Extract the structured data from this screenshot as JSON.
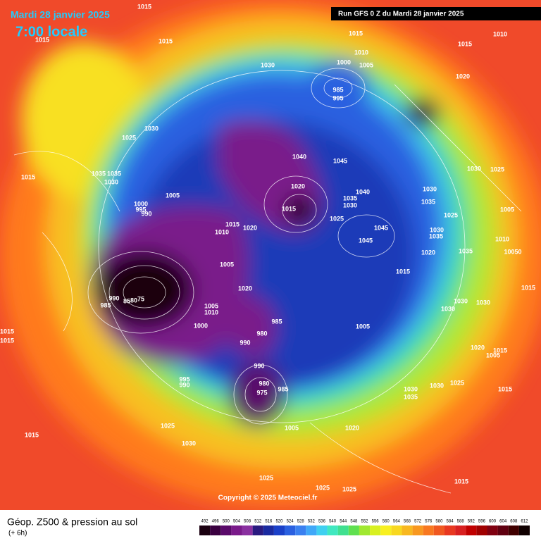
{
  "header": {
    "date": "Mardi 28 janvier 2025",
    "time": "7:00 locale",
    "run": "Run GFS 0 Z du Mardi 28 janvier 2025"
  },
  "copyright": "Copyright © 2025 Meteociel.fr",
  "footer": {
    "title": "Géop. Z500 & pression au sol",
    "subtitle": "(+ 6h)"
  },
  "legend": {
    "ticks": [
      492,
      496,
      500,
      504,
      508,
      512,
      516,
      520,
      524,
      528,
      532,
      536,
      540,
      544,
      548,
      552,
      556,
      560,
      564,
      568,
      572,
      576,
      580,
      584,
      588,
      592,
      596,
      600,
      604,
      608,
      612
    ],
    "colors": [
      "#1a0010",
      "#3a0040",
      "#5a0a6a",
      "#7a1a8a",
      "#8a30a0",
      "#2a1a80",
      "#1a2aa0",
      "#1a40c8",
      "#2a60e0",
      "#3a80f0",
      "#40a8f8",
      "#40d0f0",
      "#40e8c0",
      "#40e090",
      "#60e050",
      "#a0e830",
      "#d8f020",
      "#f8f020",
      "#f8d820",
      "#f8b820",
      "#f89820",
      "#f87820",
      "#f05820",
      "#e83820",
      "#d82020",
      "#c00000",
      "#a00000",
      "#800010",
      "#600010",
      "#400000",
      "#100000"
    ]
  },
  "map": {
    "pressure_labels": [
      "1015",
      "1015",
      "1015",
      "1015",
      "1010",
      "1015",
      "1010",
      "1000",
      "1005",
      "1030",
      "1020",
      "985",
      "995",
      "1030",
      "1025",
      "1040",
      "1045",
      "1015",
      "1035",
      "1035",
      "1030",
      "1040",
      "1030",
      "1030",
      "1025",
      "1005",
      "1020",
      "1035",
      "1030",
      "1035",
      "1000",
      "995",
      "990",
      "1015",
      "1025",
      "1025",
      "1005",
      "1015",
      "1020",
      "1010",
      "1045",
      "1030",
      "1035",
      "1045",
      "1010",
      "10050",
      "1020",
      "1035",
      "1005",
      "1015",
      "1015",
      "990",
      "85",
      "80",
      "75",
      "1020",
      "985",
      "1005",
      "1010",
      "985",
      "1000",
      "980",
      "990",
      "1030",
      "1030",
      "1030",
      "1005",
      "1015",
      "1015",
      "1020",
      "1015",
      "1005",
      "990",
      "995",
      "990",
      "980",
      "975",
      "985",
      "1030",
      "1025",
      "1030",
      "1035",
      "1015",
      "1005",
      "1020",
      "1025",
      "1030",
      "1015",
      "1025",
      "1015",
      "1025",
      "1025"
    ]
  }
}
